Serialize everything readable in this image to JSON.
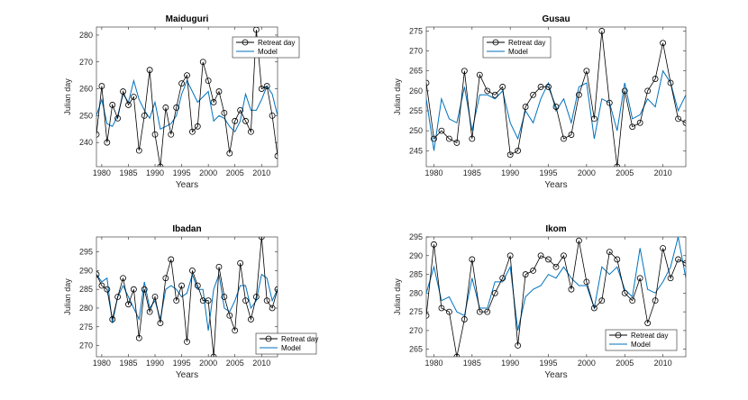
{
  "colors": {
    "observed": "#000000",
    "model": "#0072BD",
    "axis": "#262626",
    "background": "#ffffff"
  },
  "chart_data": [
    {
      "type": "line",
      "title": "Maiduguri",
      "xlabel": "Years",
      "ylabel": "Julian day",
      "xlim": [
        1979,
        2013
      ],
      "ylim": [
        231,
        283
      ],
      "xticks": [
        1980,
        1985,
        1990,
        1995,
        2000,
        2005,
        2010
      ],
      "yticks": [
        240,
        250,
        260,
        270,
        280
      ],
      "legend_position": "top-right",
      "x": [
        1979,
        1980,
        1981,
        1982,
        1983,
        1984,
        1985,
        1986,
        1987,
        1988,
        1989,
        1990,
        1991,
        1992,
        1993,
        1994,
        1995,
        1996,
        1997,
        1998,
        1999,
        2000,
        2001,
        2002,
        2003,
        2004,
        2005,
        2006,
        2007,
        2008,
        2009,
        2010,
        2011,
        2012,
        2013
      ],
      "series": [
        {
          "name": "Retreat day",
          "marker": "circle",
          "values": [
            243,
            261,
            240,
            254,
            249,
            259,
            254,
            257,
            237,
            250,
            267,
            243,
            231,
            253,
            243,
            253,
            262,
            265,
            244,
            246,
            270,
            263,
            255,
            259,
            251,
            236,
            248,
            252,
            248,
            244,
            282,
            260,
            261,
            250,
            235
          ]
        },
        {
          "name": "Model",
          "marker": "none",
          "values": [
            250,
            256,
            247,
            246,
            250,
            258,
            255,
            263,
            256,
            252,
            249,
            255,
            245,
            246,
            247,
            250,
            258,
            263,
            259,
            255,
            257,
            259,
            248,
            250,
            249,
            246,
            244,
            248,
            258,
            252,
            252,
            256,
            261,
            258,
            250
          ]
        }
      ]
    },
    {
      "type": "line",
      "title": "Gusau",
      "xlabel": "Years",
      "ylabel": "Julian day",
      "xlim": [
        1979,
        2013
      ],
      "ylim": [
        241,
        276
      ],
      "xticks": [
        1980,
        1985,
        1990,
        1995,
        2000,
        2005,
        2010
      ],
      "yticks": [
        245,
        250,
        255,
        260,
        265,
        270,
        275
      ],
      "legend_position": "top-right",
      "x": [
        1979,
        1980,
        1981,
        1982,
        1983,
        1984,
        1985,
        1986,
        1987,
        1988,
        1989,
        1990,
        1991,
        1992,
        1993,
        1994,
        1995,
        1996,
        1997,
        1998,
        1999,
        2000,
        2001,
        2002,
        2003,
        2004,
        2005,
        2006,
        2007,
        2008,
        2009,
        2010,
        2011,
        2012,
        2013
      ],
      "series": [
        {
          "name": "Retreat day",
          "marker": "circle",
          "values": [
            262,
            248,
            250,
            248,
            247,
            265,
            248,
            264,
            260,
            259,
            261,
            244,
            245,
            256,
            259,
            261,
            261,
            256,
            248,
            249,
            259,
            265,
            253,
            275,
            257,
            241,
            260,
            251,
            252,
            260,
            263,
            272,
            262,
            253,
            252
          ]
        },
        {
          "name": "Model",
          "marker": "none",
          "values": [
            258,
            245,
            258,
            253,
            252,
            261,
            250,
            259,
            259,
            258,
            260,
            252,
            248,
            255,
            252,
            258,
            262,
            255,
            258,
            252,
            261,
            262,
            248,
            258,
            257,
            250,
            262,
            253,
            254,
            258,
            256,
            265,
            262,
            255,
            259
          ]
        }
      ]
    },
    {
      "type": "line",
      "title": "Ibadan",
      "xlabel": "Years",
      "ylabel": "Julian day",
      "xlim": [
        1979,
        2013
      ],
      "ylim": [
        267,
        299
      ],
      "xticks": [
        1980,
        1985,
        1990,
        1995,
        2000,
        2005,
        2010
      ],
      "yticks": [
        270,
        275,
        280,
        285,
        290,
        295
      ],
      "legend_position": "bottom-right",
      "x": [
        1979,
        1980,
        1981,
        1982,
        1983,
        1984,
        1985,
        1986,
        1987,
        1988,
        1989,
        1990,
        1991,
        1992,
        1993,
        1994,
        1995,
        1996,
        1997,
        1998,
        1999,
        2000,
        2001,
        2002,
        2003,
        2004,
        2005,
        2006,
        2007,
        2008,
        2009,
        2010,
        2011,
        2012,
        2013
      ],
      "series": [
        {
          "name": "Retreat day",
          "marker": "circle",
          "values": [
            289,
            286,
            285,
            277,
            283,
            288,
            281,
            285,
            272,
            285,
            279,
            283,
            276,
            288,
            293,
            282,
            286,
            271,
            290,
            286,
            282,
            282,
            267,
            291,
            283,
            278,
            274,
            292,
            282,
            277,
            283,
            299,
            282,
            280,
            285
          ]
        },
        {
          "name": "Model",
          "marker": "none",
          "values": [
            289,
            287,
            288,
            276,
            283,
            286,
            283,
            280,
            277,
            287,
            280,
            282,
            277,
            285,
            286,
            285,
            283,
            284,
            289,
            285,
            285,
            274,
            285,
            289,
            280,
            279,
            282,
            286,
            286,
            280,
            282,
            289,
            288,
            282,
            285
          ]
        }
      ]
    },
    {
      "type": "line",
      "title": "Ikom",
      "xlabel": "Years",
      "ylabel": "Julian day",
      "xlim": [
        1979,
        2013
      ],
      "ylim": [
        263,
        295
      ],
      "xticks": [
        1980,
        1985,
        1990,
        1995,
        2000,
        2005,
        2010
      ],
      "yticks": [
        265,
        270,
        275,
        280,
        285,
        290,
        295
      ],
      "legend_position": "bottom-right",
      "x": [
        1979,
        1980,
        1981,
        1982,
        1983,
        1984,
        1985,
        1986,
        1987,
        1988,
        1989,
        1990,
        1991,
        1992,
        1993,
        1994,
        1995,
        1996,
        1997,
        1998,
        1999,
        2000,
        2001,
        2002,
        2003,
        2004,
        2005,
        2006,
        2007,
        2008,
        2009,
        2010,
        2011,
        2012,
        2013
      ],
      "series": [
        {
          "name": "Retreat day",
          "marker": "circle",
          "values": [
            274,
            293,
            276,
            275,
            263,
            273,
            289,
            275,
            275,
            280,
            284,
            290,
            266,
            285,
            286,
            290,
            289,
            287,
            290,
            281,
            294,
            283,
            276,
            278,
            291,
            289,
            280,
            278,
            284,
            272,
            278,
            292,
            284,
            289,
            288
          ]
        },
        {
          "name": "Model",
          "marker": "none",
          "values": [
            280,
            287,
            278,
            279,
            275,
            274,
            284,
            276,
            276,
            283,
            283,
            287,
            270,
            279,
            281,
            282,
            285,
            284,
            287,
            284,
            282,
            282,
            276,
            287,
            285,
            287,
            281,
            279,
            292,
            281,
            280,
            283,
            287,
            295,
            284
          ]
        }
      ]
    }
  ]
}
